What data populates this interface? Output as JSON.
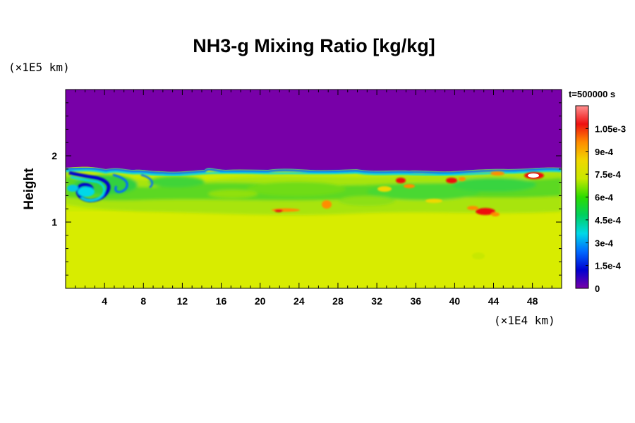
{
  "chart_data": {
    "type": "heatmap",
    "title": "NH3-g Mixing Ratio [kg/kg]",
    "ylabel": "Height",
    "xlabel": "",
    "x_unit": "(×1E4 km)",
    "y_unit": "(×1E5 km)",
    "time_label": "t=500000 s",
    "xlim": [
      0,
      51
    ],
    "ylim": [
      0,
      3
    ],
    "x_ticks": [
      4,
      8,
      12,
      16,
      20,
      24,
      28,
      32,
      36,
      40,
      44,
      48
    ],
    "x_tick_labels": [
      "4",
      "8",
      "12",
      "16",
      "20",
      "24",
      "28",
      "32",
      "36",
      "40",
      "44",
      "48"
    ],
    "x_minor_step": 1,
    "y_ticks": [
      1,
      2
    ],
    "y_tick_labels": [
      "1",
      "2"
    ],
    "y_minor_step": 0.2,
    "colorbar": {
      "vmin": 0,
      "vmax": 0.0012,
      "tick_values": [
        0,
        0.00015,
        0.0003,
        0.00045,
        0.0006,
        0.00075,
        0.0009,
        0.00105
      ],
      "tick_labels": [
        "0",
        "1.5e-4",
        "3e-4",
        "4.5e-4",
        "6e-4",
        "7.5e-4",
        "9e-4",
        "1.05e-3"
      ],
      "colors": [
        "#7800a8",
        "#0000d0",
        "#0068ff",
        "#00d8e8",
        "#00d060",
        "#2cdc00",
        "#c8e800",
        "#f0d800",
        "#ff8c00",
        "#ee1010",
        "#ff9090"
      ]
    },
    "field": {
      "background_value": 0.00075,
      "upper_value": 0,
      "layer_top_height": 1.8
    }
  }
}
